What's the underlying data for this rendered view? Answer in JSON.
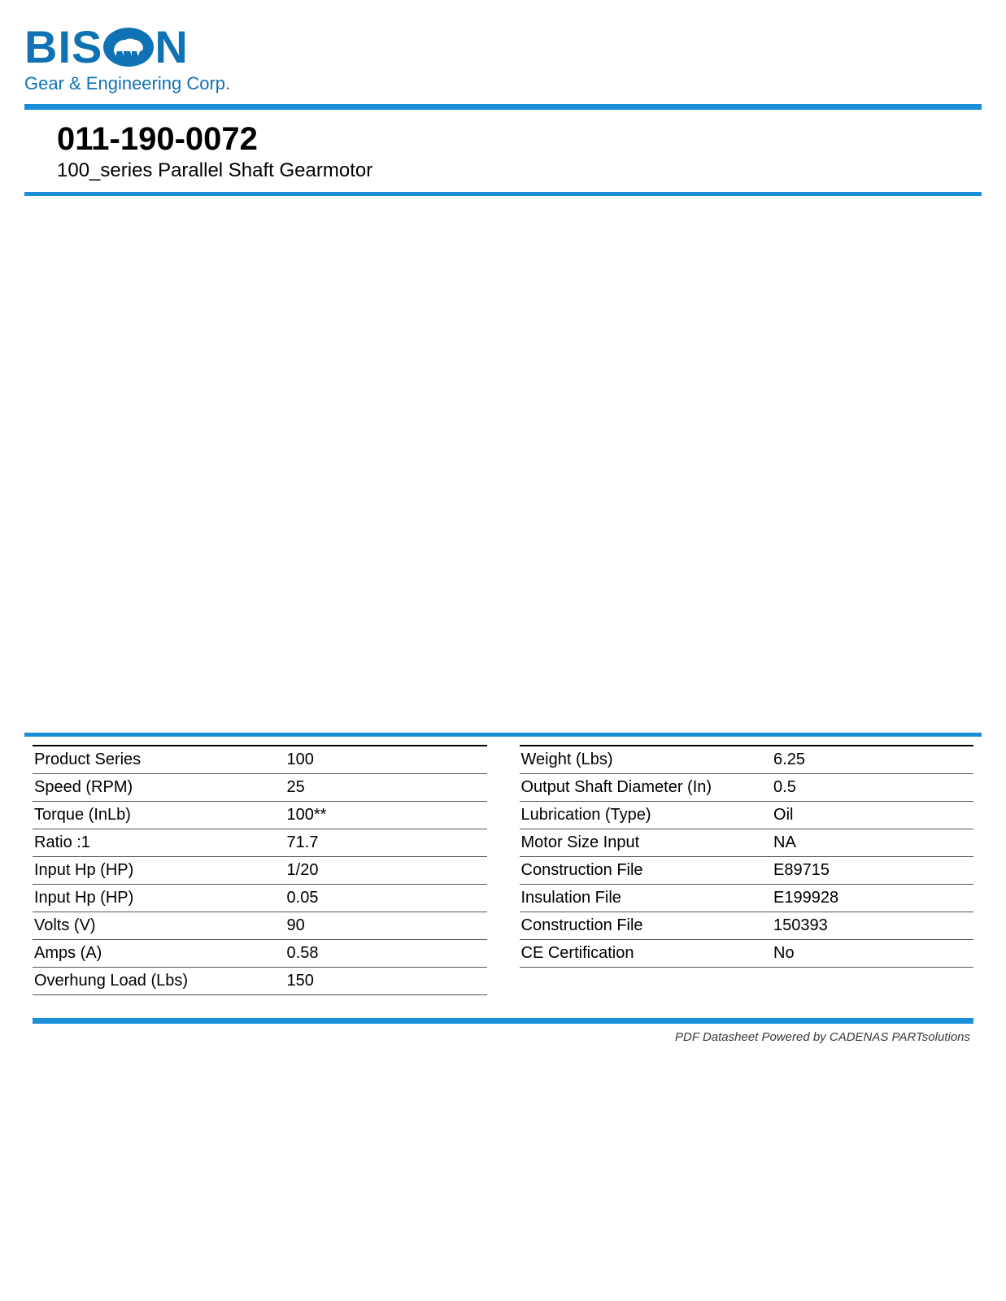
{
  "brand": {
    "name": "BISON",
    "tagline": "Gear & Engineering Corp.",
    "color": "#0f72b5",
    "rule_color": "#1a8fd8"
  },
  "header": {
    "part_number": "011-190-0072",
    "description": "100_series Parallel Shaft Gearmotor"
  },
  "specs_left": [
    {
      "label": "Product Series",
      "value": "100"
    },
    {
      "label": "Speed (RPM)",
      "value": "25"
    },
    {
      "label": "Torque (InLb)",
      "value": "100**"
    },
    {
      "label": "Ratio :1",
      "value": "71.7"
    },
    {
      "label": "Input Hp (HP)",
      "value": "1/20"
    },
    {
      "label": "Input Hp (HP)",
      "value": "0.05"
    },
    {
      "label": "Volts (V)",
      "value": "90"
    },
    {
      "label": "Amps (A)",
      "value": "0.58"
    },
    {
      "label": "Overhung Load (Lbs)",
      "value": "150"
    }
  ],
  "specs_right": [
    {
      "label": "Weight (Lbs)",
      "value": "6.25"
    },
    {
      "label": "Output Shaft Diameter (In)",
      "value": "0.5"
    },
    {
      "label": "Lubrication (Type)",
      "value": "Oil"
    },
    {
      "label": "Motor Size Input",
      "value": "NA"
    },
    {
      "label": "Construction File",
      "value": "E89715"
    },
    {
      "label": "Insulation File",
      "value": "E199928"
    },
    {
      "label": "Construction File",
      "value": "150393"
    },
    {
      "label": "CE Certification",
      "value": "No"
    }
  ],
  "footer": {
    "note": "PDF Datasheet Powered by CADENAS PARTsolutions"
  },
  "style": {
    "row_border": "#555555",
    "header_row_border": "#000000",
    "text_color": "#000000",
    "background": "#ffffff",
    "spec_font_size": 20
  }
}
